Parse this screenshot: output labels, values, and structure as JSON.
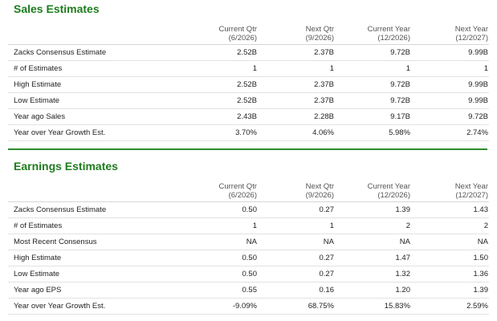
{
  "sales": {
    "title": "Sales Estimates",
    "headers": [
      {
        "line1": "Current Qtr",
        "line2": "(6/2026)"
      },
      {
        "line1": "Next Qtr",
        "line2": "(9/2026)"
      },
      {
        "line1": "Current Year",
        "line2": "(12/2026)"
      },
      {
        "line1": "Next Year",
        "line2": "(12/2027)"
      }
    ],
    "rows": [
      {
        "label": "Zacks Consensus Estimate",
        "values": [
          "2.52B",
          "2.37B",
          "9.72B",
          "9.99B"
        ]
      },
      {
        "label": "# of Estimates",
        "values": [
          "1",
          "1",
          "1",
          "1"
        ]
      },
      {
        "label": "High Estimate",
        "values": [
          "2.52B",
          "2.37B",
          "9.72B",
          "9.99B"
        ]
      },
      {
        "label": "Low Estimate",
        "values": [
          "2.52B",
          "2.37B",
          "9.72B",
          "9.99B"
        ]
      },
      {
        "label": "Year ago Sales",
        "values": [
          "2.43B",
          "2.28B",
          "9.17B",
          "9.72B"
        ]
      },
      {
        "label": "Year over Year Growth Est.",
        "values": [
          "3.70%",
          "4.06%",
          "5.98%",
          "2.74%"
        ]
      }
    ]
  },
  "earnings": {
    "title": "Earnings Estimates",
    "headers": [
      {
        "line1": "Current Qtr",
        "line2": "(6/2026)"
      },
      {
        "line1": "Next Qtr",
        "line2": "(9/2026)"
      },
      {
        "line1": "Current Year",
        "line2": "(12/2026)"
      },
      {
        "line1": "Next Year",
        "line2": "(12/2027)"
      }
    ],
    "rows": [
      {
        "label": "Zacks Consensus Estimate",
        "values": [
          "0.50",
          "0.27",
          "1.39",
          "1.43"
        ]
      },
      {
        "label": "# of Estimates",
        "values": [
          "1",
          "1",
          "2",
          "2"
        ]
      },
      {
        "label": "Most Recent Consensus",
        "values": [
          "NA",
          "NA",
          "NA",
          "NA"
        ]
      },
      {
        "label": "High Estimate",
        "values": [
          "0.50",
          "0.27",
          "1.47",
          "1.50"
        ]
      },
      {
        "label": "Low Estimate",
        "values": [
          "0.50",
          "0.27",
          "1.32",
          "1.36"
        ]
      },
      {
        "label": "Year ago EPS",
        "values": [
          "0.55",
          "0.16",
          "1.20",
          "1.39"
        ]
      },
      {
        "label": "Year over Year Growth Est.",
        "values": [
          "-9.09%",
          "68.75%",
          "15.83%",
          "2.59%"
        ]
      }
    ]
  },
  "colors": {
    "title_green": "#1e7c1e",
    "divider_green": "#2e8b2e"
  }
}
